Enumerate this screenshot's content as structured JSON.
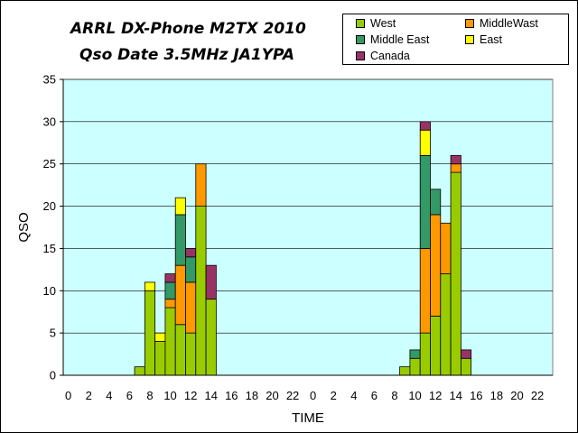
{
  "chart_data": {
    "type": "bar",
    "stacked": true,
    "title_lines": [
      "ARRL DX-Phone M2TX 2010",
      "Qso Date 3.5MHz JA1YPA"
    ],
    "xlabel": "TIME",
    "ylabel": "QSO",
    "ylim": [
      0,
      35
    ],
    "yticks": [
      0,
      5,
      10,
      15,
      20,
      25,
      30,
      35
    ],
    "grid": "horizontal",
    "legend_position": "top-right",
    "categories": [
      "0",
      "1",
      "2",
      "3",
      "4",
      "5",
      "6",
      "7",
      "8",
      "9",
      "10",
      "11",
      "12",
      "13",
      "14",
      "15",
      "16",
      "17",
      "18",
      "19",
      "20",
      "21",
      "22",
      "23",
      "0",
      "1",
      "2",
      "3",
      "4",
      "5",
      "6",
      "7",
      "8",
      "9",
      "10",
      "11",
      "12",
      "13",
      "14",
      "15",
      "16",
      "17",
      "18",
      "19",
      "20",
      "21",
      "22",
      "23"
    ],
    "xtick_labels": [
      "0",
      "2",
      "4",
      "6",
      "8",
      "10",
      "12",
      "14",
      "16",
      "18",
      "20",
      "22",
      "0",
      "2",
      "4",
      "6",
      "8",
      "10",
      "12",
      "14",
      "16",
      "18",
      "20",
      "22"
    ],
    "series": [
      {
        "name": "West",
        "color": "#99cc00",
        "values": [
          0,
          0,
          0,
          0,
          0,
          0,
          0,
          1,
          10,
          4,
          8,
          6,
          5,
          20,
          9,
          0,
          0,
          0,
          0,
          0,
          0,
          0,
          0,
          0,
          0,
          0,
          0,
          0,
          0,
          0,
          0,
          0,
          0,
          1,
          2,
          5,
          7,
          12,
          24,
          2,
          0,
          0,
          0,
          0,
          0,
          0,
          0,
          0
        ]
      },
      {
        "name": "MiddleWast",
        "color": "#ff9900",
        "values": [
          0,
          0,
          0,
          0,
          0,
          0,
          0,
          0,
          0,
          0,
          1,
          7,
          6,
          5,
          0,
          0,
          0,
          0,
          0,
          0,
          0,
          0,
          0,
          0,
          0,
          0,
          0,
          0,
          0,
          0,
          0,
          0,
          0,
          0,
          0,
          10,
          12,
          6,
          1,
          0,
          0,
          0,
          0,
          0,
          0,
          0,
          0,
          0
        ]
      },
      {
        "name": "Middle East",
        "color": "#339966",
        "values": [
          0,
          0,
          0,
          0,
          0,
          0,
          0,
          0,
          0,
          0,
          2,
          6,
          3,
          0,
          0,
          0,
          0,
          0,
          0,
          0,
          0,
          0,
          0,
          0,
          0,
          0,
          0,
          0,
          0,
          0,
          0,
          0,
          0,
          0,
          1,
          11,
          3,
          0,
          0,
          0,
          0,
          0,
          0,
          0,
          0,
          0,
          0,
          0
        ]
      },
      {
        "name": "East",
        "color": "#ffff00",
        "values": [
          0,
          0,
          0,
          0,
          0,
          0,
          0,
          0,
          1,
          1,
          0,
          2,
          0,
          0,
          0,
          0,
          0,
          0,
          0,
          0,
          0,
          0,
          0,
          0,
          0,
          0,
          0,
          0,
          0,
          0,
          0,
          0,
          0,
          0,
          0,
          3,
          0,
          0,
          0,
          0,
          0,
          0,
          0,
          0,
          0,
          0,
          0,
          0
        ]
      },
      {
        "name": "Canada",
        "color": "#993366",
        "values": [
          0,
          0,
          0,
          0,
          0,
          0,
          0,
          0,
          0,
          0,
          1,
          0,
          1,
          0,
          4,
          0,
          0,
          0,
          0,
          0,
          0,
          0,
          0,
          0,
          0,
          0,
          0,
          0,
          0,
          0,
          0,
          0,
          0,
          0,
          0,
          1,
          0,
          0,
          1,
          1,
          0,
          0,
          0,
          0,
          0,
          0,
          0,
          0
        ]
      }
    ],
    "colors": {
      "plot_background": "#ccffff",
      "gridline": "#000000"
    }
  },
  "legend_order": [
    0,
    2,
    4,
    1,
    3
  ]
}
